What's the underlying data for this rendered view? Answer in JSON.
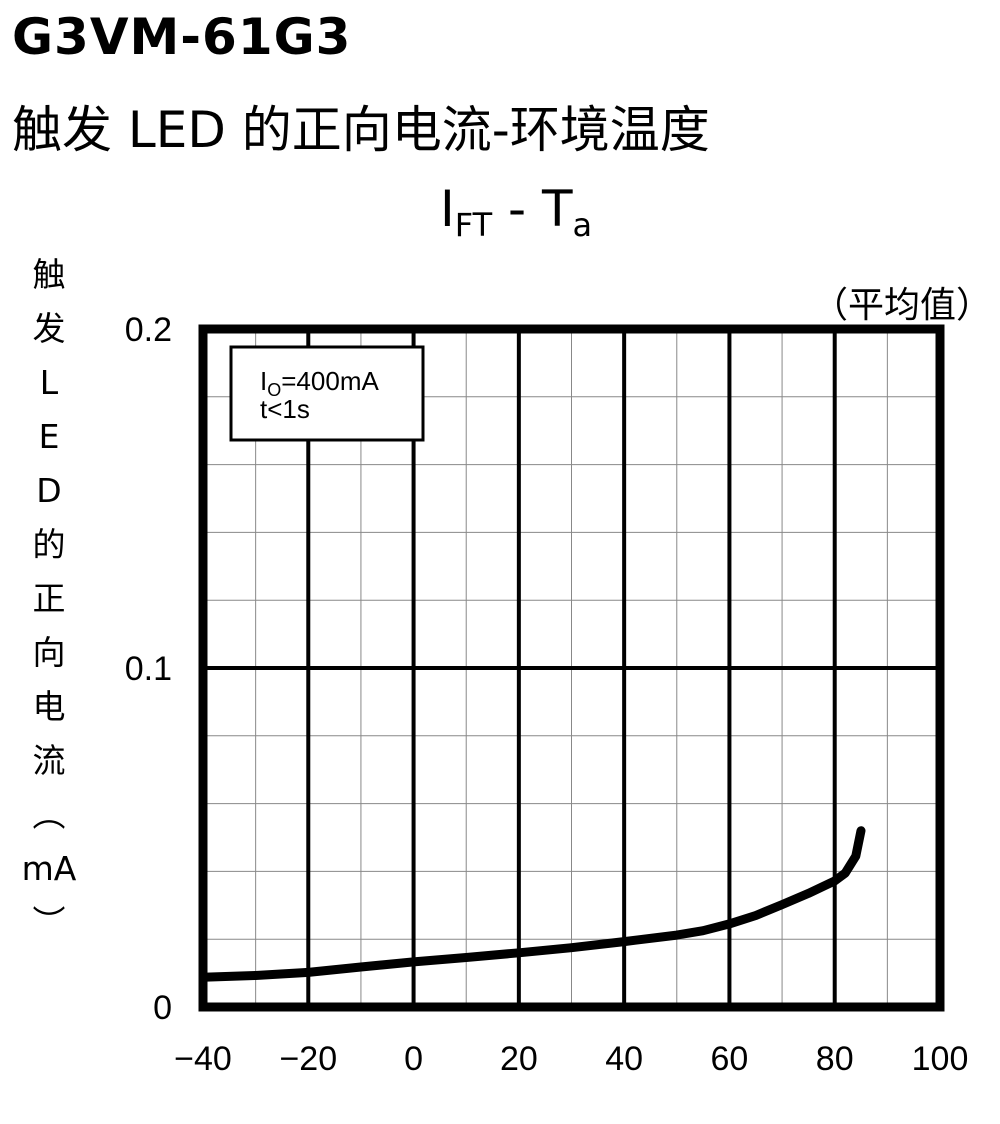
{
  "header": {
    "part_number": "G3VM-61G3",
    "subtitle": "触发 LED 的正向电流-环境温度",
    "chart_title_main_1": "I",
    "chart_title_sub_1": "FT",
    "chart_title_sep": " - ",
    "chart_title_main_2": "T",
    "chart_title_sub_2": "a",
    "note": "（平均值）"
  },
  "ylabel_chars": [
    "触",
    "发",
    "L",
    "E",
    "D",
    "的",
    "正",
    "向",
    "电",
    "流",
    "︵",
    "mA",
    "︶"
  ],
  "chart_data": {
    "type": "line",
    "title": "IFT - Ta",
    "xlabel": "",
    "ylabel": "触发LED的正向电流（mA）",
    "xlim": [
      -40,
      100
    ],
    "ylim": [
      0,
      0.2
    ],
    "x_ticks": [
      -40,
      -20,
      0,
      20,
      40,
      60,
      80,
      100
    ],
    "x_tick_labels": [
      "−40",
      "−20",
      "0",
      "20",
      "40",
      "60",
      "80",
      "100"
    ],
    "y_ticks": [
      0,
      0.1,
      0.2
    ],
    "y_tick_labels": [
      "0",
      "0.1",
      "0.2"
    ],
    "grid": true,
    "annotation_lines": [
      {
        "main": "I",
        "sub": "O",
        "rest": "=400mA"
      },
      {
        "main": "t<1s",
        "sub": "",
        "rest": ""
      }
    ],
    "series": [
      {
        "x": [
          -40,
          -30,
          -20,
          -10,
          0,
          10,
          20,
          30,
          40,
          50,
          55,
          60,
          65,
          70,
          75,
          80,
          82,
          84,
          85
        ],
        "y": [
          0.0088,
          0.0093,
          0.0102,
          0.0118,
          0.0133,
          0.0146,
          0.016,
          0.0175,
          0.0193,
          0.0212,
          0.0225,
          0.0245,
          0.027,
          0.0302,
          0.0335,
          0.0372,
          0.0395,
          0.0445,
          0.052
        ]
      }
    ],
    "color": "#000000"
  }
}
